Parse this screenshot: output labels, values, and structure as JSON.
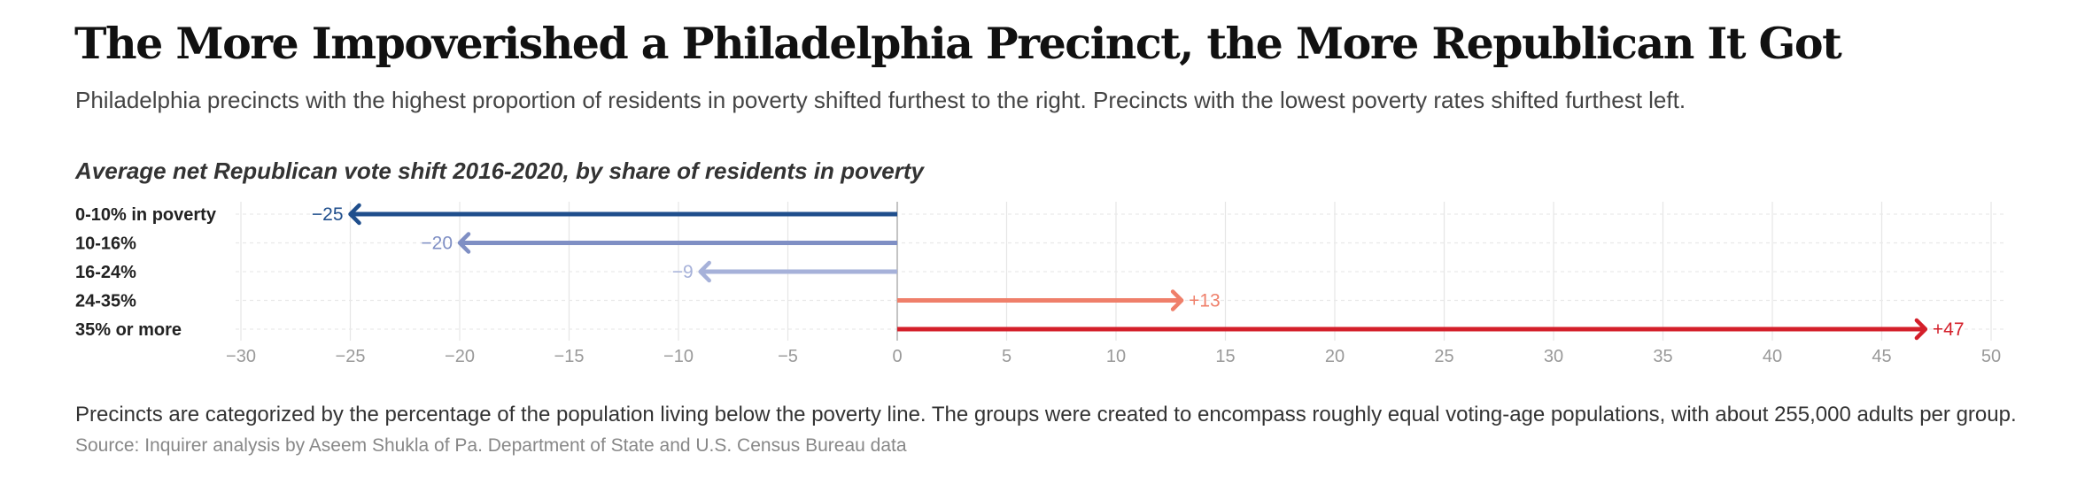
{
  "header": {
    "title": "The More Impoverished a Philadelphia Precinct, the More Republican It Got",
    "subtitle": "Philadelphia precincts with the highest proportion of residents in poverty shifted furthest to the right. Precincts with the lowest poverty rates shifted furthest left."
  },
  "chart_title": "Average net Republican vote shift 2016-2020, by share of residents in poverty",
  "footer": {
    "note": "Precincts are categorized by the percentage of the population living below the poverty line. The groups were created to encompass roughly equal voting-age populations, with about 255,000 adults per group.",
    "source": "Source: Inquirer analysis by Aseem Shukla of Pa. Department of State and U.S. Census Bureau data"
  },
  "chart_data": {
    "type": "bar",
    "orientation": "horizontal",
    "style": "arrow",
    "title": "Average net Republican vote shift 2016-2020, by share of residents in poverty",
    "categories": [
      "0-10% in poverty",
      "10-16%",
      "16-24%",
      "24-35%",
      "35% or more"
    ],
    "values": [
      -25,
      -20,
      -9,
      13,
      47
    ],
    "value_labels": [
      "−25",
      "−20",
      "−9",
      "+13",
      "+47"
    ],
    "colors": [
      "#1f4e8c",
      "#7f8fc4",
      "#a6b1d9",
      "#ef7f6a",
      "#d41f2a"
    ],
    "xlim": [
      -30,
      50
    ],
    "x_ticks": [
      -30,
      -25,
      -20,
      -15,
      -10,
      -5,
      0,
      5,
      10,
      15,
      20,
      25,
      30,
      35,
      40,
      45,
      50
    ],
    "x_tick_labels": [
      "−30",
      "−25",
      "−20",
      "−15",
      "−10",
      "−5",
      "0",
      "5",
      "10",
      "15",
      "20",
      "25",
      "30",
      "35",
      "40",
      "45",
      "50"
    ],
    "grid": true,
    "xlabel": "",
    "ylabel": ""
  }
}
